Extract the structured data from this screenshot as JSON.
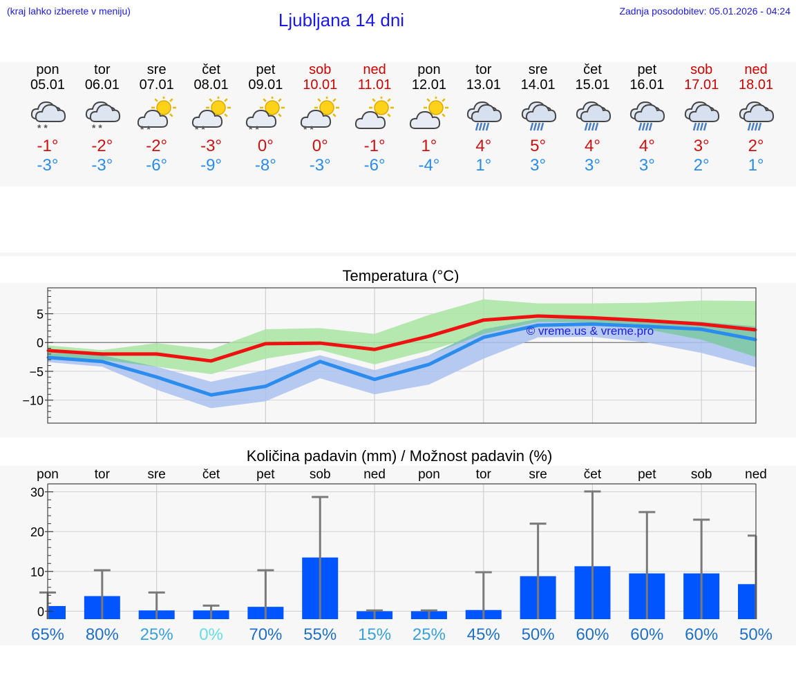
{
  "header": {
    "hint": "(kraj lahko izberete v meniju)",
    "title": "Ljubljana 14 dni",
    "updated": "Zadnja posodobitev: 05.01.2026 - 04:24"
  },
  "days": [
    {
      "name": "pon",
      "date": "05.01",
      "weekend": false,
      "icon": "cloud-snow",
      "max": "-1°",
      "min": "-3°"
    },
    {
      "name": "tor",
      "date": "06.01",
      "weekend": false,
      "icon": "cloud-snow",
      "max": "-2°",
      "min": "-3°"
    },
    {
      "name": "sre",
      "date": "07.01",
      "weekend": false,
      "icon": "sun-cloud-snow",
      "max": "-2°",
      "min": "-6°"
    },
    {
      "name": "čet",
      "date": "08.01",
      "weekend": false,
      "icon": "sun-cloud-snow",
      "max": "-3°",
      "min": "-9°"
    },
    {
      "name": "pet",
      "date": "09.01",
      "weekend": false,
      "icon": "sun-cloud-snow",
      "max": "0°",
      "min": "-8°"
    },
    {
      "name": "sob",
      "date": "10.01",
      "weekend": true,
      "icon": "sun-cloud-snow",
      "max": "0°",
      "min": "-3°"
    },
    {
      "name": "ned",
      "date": "11.01",
      "weekend": true,
      "icon": "sun-cloud",
      "max": "-1°",
      "min": "-6°"
    },
    {
      "name": "pon",
      "date": "12.01",
      "weekend": false,
      "icon": "sun-cloud",
      "max": "1°",
      "min": "-4°"
    },
    {
      "name": "tor",
      "date": "13.01",
      "weekend": false,
      "icon": "cloud-rain",
      "max": "4°",
      "min": "1°"
    },
    {
      "name": "sre",
      "date": "14.01",
      "weekend": false,
      "icon": "cloud-rain",
      "max": "5°",
      "min": "3°"
    },
    {
      "name": "čet",
      "date": "15.01",
      "weekend": false,
      "icon": "cloud-rain",
      "max": "4°",
      "min": "3°"
    },
    {
      "name": "pet",
      "date": "16.01",
      "weekend": false,
      "icon": "cloud-rain",
      "max": "4°",
      "min": "3°"
    },
    {
      "name": "sob",
      "date": "17.01",
      "weekend": true,
      "icon": "cloud-rain",
      "max": "3°",
      "min": "2°"
    },
    {
      "name": "ned",
      "date": "18.01",
      "weekend": true,
      "icon": "cloud-rain",
      "max": "2°",
      "min": "1°"
    }
  ],
  "colors": {
    "max_line": "#ee1111",
    "min_line": "#2b8cee",
    "max_band": "#a9e5a1",
    "min_band": "#a9c1f0",
    "overlap_band": "#7fc6ad",
    "bar": "#0055ff",
    "whisker": "#7a7a7a",
    "weekend": "#cc0000",
    "pct_high": "#1f6fc5",
    "pct_mid": "#3aa0d8",
    "pct_low": "#66dde0"
  },
  "chart_data": [
    {
      "type": "line",
      "title": "Temperatura (°C)",
      "watermark": "© vreme.us & vreme.pro",
      "x": [
        0,
        1,
        2,
        3,
        4,
        5,
        6,
        7,
        8,
        9,
        10,
        11,
        12,
        13
      ],
      "ylim": [
        -14,
        9.5
      ],
      "yticks": [
        5,
        0,
        -5,
        -10
      ],
      "ytick_labels": [
        "5",
        "0",
        "−5",
        "−10"
      ],
      "series": [
        {
          "name": "max",
          "values": [
            -1.4,
            -2,
            -2,
            -3.2,
            -0.2,
            -0.1,
            -1.2,
            1.1,
            3.9,
            4.6,
            4.3,
            3.8,
            3.2,
            2.2
          ],
          "band_low": [
            -0.5,
            -1.3,
            -0.1,
            -1.2,
            2.3,
            2.5,
            1.5,
            4.8,
            7.5,
            6.8,
            6.8,
            6.9,
            7.3,
            7.2
          ],
          "band_high_note": "upper edge",
          "band_lower": [
            -2.4,
            -3,
            -4.2,
            -5.5,
            -2.8,
            -1.3,
            -3.8,
            -1.4,
            1.5,
            3.6,
            3.5,
            2.3,
            0.5,
            -2.5
          ]
        },
        {
          "name": "min",
          "values": [
            -2.6,
            -3.3,
            -6,
            -9.1,
            -7.6,
            -3.3,
            -6.4,
            -3.8,
            0.9,
            3,
            3.2,
            2.8,
            2.3,
            0.5
          ],
          "band_upper": [
            -1.8,
            -2.2,
            -4.2,
            -6.8,
            -4.8,
            -2.2,
            -4.8,
            -2.2,
            2.3,
            4.1,
            4.2,
            4,
            3.6,
            2.8
          ],
          "band_lower": [
            -3.4,
            -4.2,
            -8.2,
            -11.4,
            -10.2,
            -6.2,
            -9,
            -7.3,
            -2.8,
            0.9,
            1,
            0,
            -1.8,
            -4.3
          ]
        }
      ]
    },
    {
      "type": "bar",
      "title": "Količina padavin (mm) / Možnost padavin (%)",
      "categories": [
        "pon",
        "tor",
        "sre",
        "čet",
        "pet",
        "sob",
        "ned",
        "pon",
        "tor",
        "sre",
        "čet",
        "pet",
        "sob",
        "ned"
      ],
      "values": [
        1.3,
        3.8,
        0.2,
        0.2,
        1.1,
        13.5,
        0,
        0,
        0.3,
        8.8,
        11.3,
        9.5,
        9.5,
        6.8
      ],
      "whisker_max": [
        4.7,
        10.3,
        4.7,
        1.4,
        10.3,
        28.7,
        0.2,
        0.2,
        9.8,
        22,
        30.1,
        24.9,
        23,
        19
      ],
      "chance": [
        "65%",
        "80%",
        "25%",
        "0%",
        "70%",
        "55%",
        "15%",
        "25%",
        "45%",
        "50%",
        "60%",
        "60%",
        "60%",
        "50%"
      ],
      "chance_level": [
        "high",
        "high",
        "mid",
        "low",
        "high",
        "high",
        "mid",
        "mid",
        "high",
        "high",
        "high",
        "high",
        "high",
        "high"
      ],
      "ylim": [
        -2,
        32
      ],
      "yticks": [
        30,
        20,
        10,
        0
      ],
      "ytick_labels": [
        "30",
        "20",
        "10",
        "0"
      ]
    }
  ]
}
